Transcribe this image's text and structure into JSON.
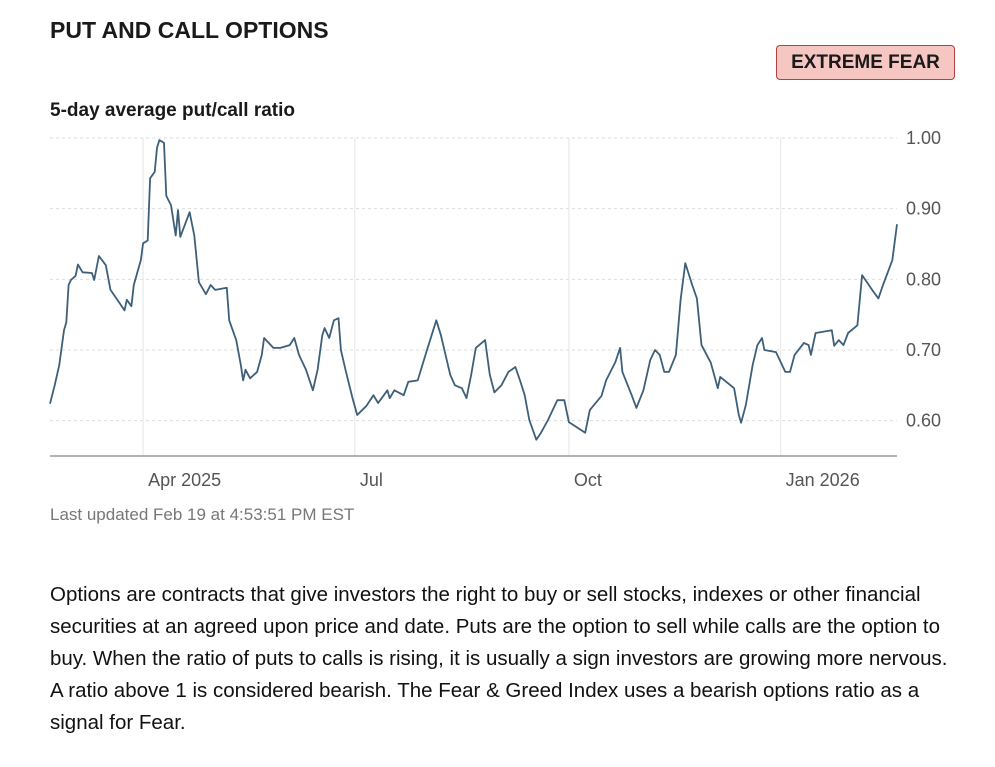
{
  "title": "PUT AND CALL OPTIONS",
  "badge": "EXTREME FEAR",
  "chart_data": {
    "type": "line",
    "title": "5-day average put/call ratio",
    "color": "#3d5f78",
    "grid": true,
    "x": [
      0,
      2,
      4,
      6,
      7,
      8,
      9,
      11,
      12,
      14,
      18,
      19,
      21,
      24,
      26,
      30,
      32,
      33,
      35,
      36,
      39,
      40,
      42,
      43,
      45,
      46,
      47,
      49,
      50,
      52,
      54,
      55,
      56,
      60,
      62,
      64,
      67,
      69,
      71,
      76,
      77,
      80,
      82,
      83,
      84,
      86,
      89,
      91,
      92,
      96,
      99,
      103,
      105,
      107,
      110,
      113,
      115,
      117,
      118,
      120,
      122,
      124,
      125,
      127,
      130,
      132,
      136,
      139,
      141,
      145,
      146,
      148,
      152,
      154,
      158,
      162,
      166,
      168,
      172,
      174,
      177,
      179,
      181,
      183,
      187,
      189,
      191,
      194,
      197,
      200,
      202,
      204,
      206,
      209,
      211,
      214,
      218,
      221,
      223,
      230,
      232,
      237,
      239,
      243,
      245,
      246,
      250,
      252,
      255,
      258,
      260,
      262,
      264,
      266,
      269,
      271,
      273,
      276,
      278,
      280,
      284,
      287,
      288,
      294,
      296,
      297,
      299,
      302,
      304,
      306,
      307,
      312,
      316,
      318,
      320,
      324,
      326,
      327,
      329,
      336,
      337,
      339,
      341,
      343,
      347,
      349,
      354,
      356,
      358,
      362,
      364
    ],
    "values": [
      0.624,
      0.65,
      0.679,
      0.728,
      0.739,
      0.792,
      0.799,
      0.805,
      0.821,
      0.81,
      0.809,
      0.799,
      0.833,
      0.82,
      0.785,
      0.766,
      0.756,
      0.771,
      0.762,
      0.792,
      0.827,
      0.851,
      0.855,
      0.943,
      0.952,
      0.986,
      0.997,
      0.993,
      0.918,
      0.905,
      0.862,
      0.898,
      0.86,
      0.895,
      0.862,
      0.796,
      0.779,
      0.792,
      0.785,
      0.788,
      0.742,
      0.714,
      0.679,
      0.657,
      0.672,
      0.66,
      0.669,
      0.693,
      0.717,
      0.703,
      0.703,
      0.707,
      0.717,
      0.693,
      0.672,
      0.643,
      0.672,
      0.721,
      0.731,
      0.717,
      0.742,
      0.745,
      0.7,
      0.672,
      0.632,
      0.608,
      0.621,
      0.636,
      0.625,
      0.643,
      0.632,
      0.643,
      0.636,
      0.655,
      0.657,
      0.7,
      0.742,
      0.721,
      0.665,
      0.65,
      0.646,
      0.632,
      0.665,
      0.703,
      0.714,
      0.665,
      0.64,
      0.65,
      0.669,
      0.676,
      0.657,
      0.636,
      0.601,
      0.573,
      0.583,
      0.601,
      0.629,
      0.629,
      0.598,
      0.583,
      0.615,
      0.635,
      0.657,
      0.683,
      0.703,
      0.669,
      0.636,
      0.618,
      0.643,
      0.686,
      0.7,
      0.693,
      0.669,
      0.669,
      0.693,
      0.771,
      0.823,
      0.792,
      0.773,
      0.707,
      0.682,
      0.646,
      0.662,
      0.646,
      0.608,
      0.597,
      0.622,
      0.679,
      0.707,
      0.717,
      0.7,
      0.697,
      0.669,
      0.669,
      0.693,
      0.71,
      0.707,
      0.693,
      0.724,
      0.728,
      0.706,
      0.714,
      0.707,
      0.724,
      0.735,
      0.806,
      0.782,
      0.773,
      0.792,
      0.827,
      0.878
    ],
    "xlim": [
      0,
      364
    ],
    "xticks": [
      {
        "value": 40,
        "label": "Apr 2025"
      },
      {
        "value": 131,
        "label": "Jul"
      },
      {
        "value": 223,
        "label": "Oct"
      },
      {
        "value": 314,
        "label": "Jan 2026"
      }
    ],
    "ylim": [
      0.55,
      1.0
    ],
    "yticks": [
      {
        "value": 0.6,
        "label": "0.60"
      },
      {
        "value": 0.7,
        "label": "0.70"
      },
      {
        "value": 0.8,
        "label": "0.80"
      },
      {
        "value": 0.9,
        "label": "0.90"
      },
      {
        "value": 1.0,
        "label": "1.00"
      }
    ]
  },
  "updated": "Last updated Feb 19 at 4:53:51 PM EST",
  "description": "Options are contracts that give investors the right to buy or sell stocks, indexes or other financial securities at an agreed upon price and date. Puts are the option to sell while calls are the option to buy. When the ratio of puts to calls is rising, it is usually a sign investors are growing more nervous. A ratio above 1 is considered bearish. The Fear & Greed Index uses a bearish options ratio as a signal for Fear."
}
